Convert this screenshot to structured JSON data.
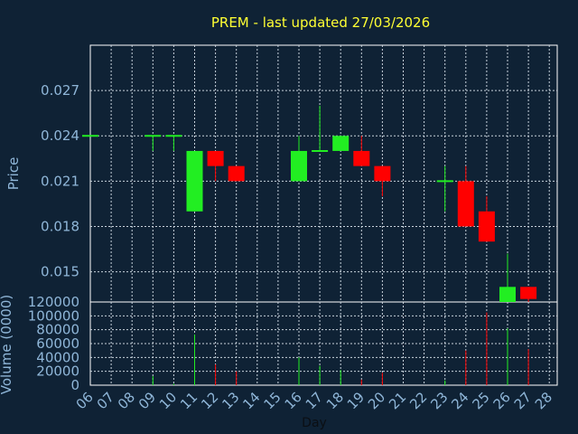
{
  "chart_data": {
    "type": "candlestick",
    "title": "PREM - last updated 27/03/2026",
    "xlabel": "Day",
    "price_ylabel": "Price",
    "volume_ylabel": "Volume (0000)",
    "x_ticks": [
      "06",
      "07",
      "08",
      "09",
      "10",
      "11",
      "12",
      "13",
      "14",
      "15",
      "16",
      "17",
      "18",
      "19",
      "20",
      "21",
      "22",
      "23",
      "24",
      "25",
      "26",
      "27",
      "28"
    ],
    "price_ticks": [
      "0.015",
      "0.018",
      "0.021",
      "0.024",
      "0.027"
    ],
    "price_ylim": [
      0.013,
      0.03
    ],
    "volume_ticks": [
      "0",
      "20000",
      "40000",
      "60000",
      "80000",
      "100000",
      "120000"
    ],
    "volume_ylim": [
      0,
      120000
    ],
    "grid": true,
    "colors": {
      "background": "#0f2235",
      "grid": "#c8d3dc",
      "up": "#22ee22",
      "down": "#ff0000",
      "title": "#ffff33",
      "axis_text": "#8fb6d8"
    },
    "candles": [
      {
        "day": "06",
        "open": 0.024,
        "high": 0.024,
        "low": 0.024,
        "close": 0.024,
        "volume": 0
      },
      {
        "day": "09",
        "open": 0.024,
        "high": 0.024,
        "low": 0.023,
        "close": 0.024,
        "volume": 13000
      },
      {
        "day": "10",
        "open": 0.024,
        "high": 0.024,
        "low": 0.023,
        "close": 0.024,
        "volume": 2000
      },
      {
        "day": "11",
        "open": 0.019,
        "high": 0.023,
        "low": 0.019,
        "close": 0.023,
        "volume": 73000
      },
      {
        "day": "12",
        "open": 0.023,
        "high": 0.023,
        "low": 0.021,
        "close": 0.022,
        "volume": 30000
      },
      {
        "day": "13",
        "open": 0.022,
        "high": 0.022,
        "low": 0.021,
        "close": 0.021,
        "volume": 20000
      },
      {
        "day": "16",
        "open": 0.021,
        "high": 0.024,
        "low": 0.021,
        "close": 0.023,
        "volume": 40000
      },
      {
        "day": "17",
        "open": 0.023,
        "high": 0.026,
        "low": 0.023,
        "close": 0.023,
        "volume": 28000
      },
      {
        "day": "18",
        "open": 0.023,
        "high": 0.024,
        "low": 0.023,
        "close": 0.024,
        "volume": 22000
      },
      {
        "day": "19",
        "open": 0.023,
        "high": 0.024,
        "low": 0.022,
        "close": 0.022,
        "volume": 8000
      },
      {
        "day": "20",
        "open": 0.022,
        "high": 0.022,
        "low": 0.02,
        "close": 0.021,
        "volume": 18000
      },
      {
        "day": "23",
        "open": 0.021,
        "high": 0.022,
        "low": 0.019,
        "close": 0.021,
        "volume": 7000
      },
      {
        "day": "24",
        "open": 0.021,
        "high": 0.022,
        "low": 0.018,
        "close": 0.018,
        "volume": 50000
      },
      {
        "day": "25",
        "open": 0.019,
        "high": 0.02,
        "low": 0.017,
        "close": 0.017,
        "volume": 105000
      },
      {
        "day": "26",
        "open": 0.013,
        "high": 0.0162,
        "low": 0.013,
        "close": 0.014,
        "volume": 82000
      },
      {
        "day": "27",
        "open": 0.014,
        "high": 0.014,
        "low": 0.013,
        "close": 0.0132,
        "volume": 52000
      }
    ]
  }
}
